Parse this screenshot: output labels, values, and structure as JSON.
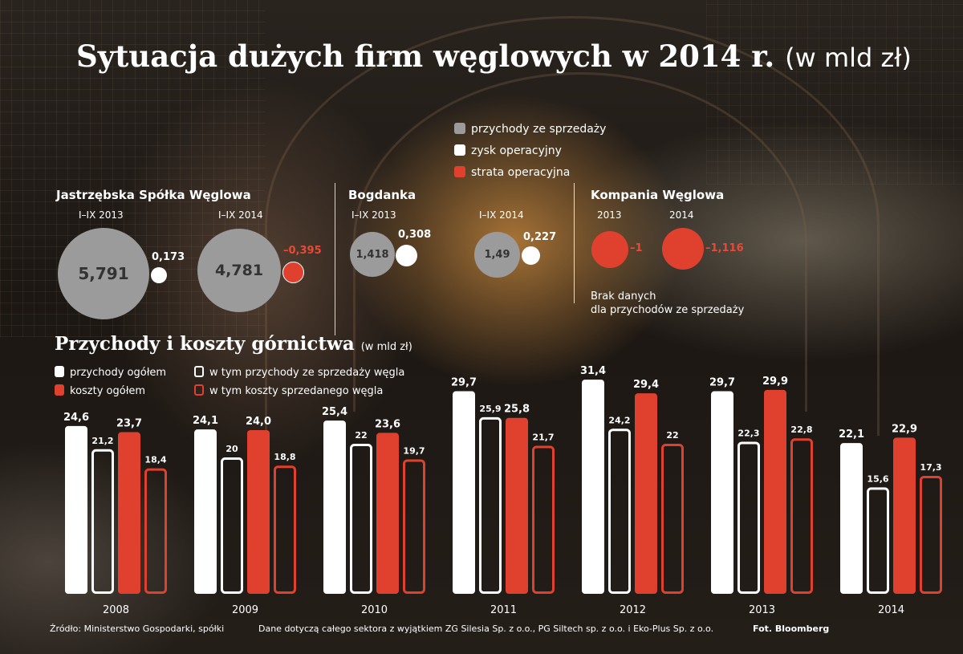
{
  "title": "Sytuacja dużych firm węglowych w 2014 r.",
  "title_unit": "(w mld zł)",
  "top_legend": [
    {
      "label": "przychody ze sprzedaży",
      "color": "#9b9b9b"
    },
    {
      "label": "zysk operacyjny",
      "color": "#ffffff"
    },
    {
      "label": "strata operacyjna",
      "color": "#e0412f"
    }
  ],
  "companies": {
    "jsw": {
      "name": "Jastrzębska Spółka Węglowa",
      "p1": {
        "period": "I–IX 2013",
        "revenue": "5,791",
        "result": "0,173"
      },
      "p2": {
        "period": "I–IX 2014",
        "revenue": "4,781",
        "result": "–0,395"
      }
    },
    "bogdanka": {
      "name": "Bogdanka",
      "p1": {
        "period": "I–IX 2013",
        "revenue": "1,418",
        "result": "0,308"
      },
      "p2": {
        "period": "I–IX 2014",
        "revenue": "1,49",
        "result": "0,227"
      }
    },
    "kw": {
      "name": "Kompania Węglowa",
      "p1": {
        "period": "2013",
        "result": "–1"
      },
      "p2": {
        "period": "2014",
        "result": "–1,116"
      },
      "note_line1": "Brak danych",
      "note_line2": "dla przychodów ze sprzedaży"
    }
  },
  "subtitle": "Przychody i koszty górnictwa",
  "subtitle_unit": "(w mld zł)",
  "chart_data": {
    "type": "bar",
    "categories": [
      "2008",
      "2009",
      "2010",
      "2011",
      "2012",
      "2013",
      "2014"
    ],
    "series": [
      {
        "name": "przychody ogółem",
        "color": "#ffffff",
        "style": "filled",
        "values": [
          24.6,
          24.1,
          25.4,
          29.7,
          31.4,
          29.7,
          22.1
        ],
        "labels": [
          "24,6",
          "24,1",
          "25,4",
          "29,7",
          "31,4",
          "29,7",
          "22,1"
        ]
      },
      {
        "name": "w tym przychody ze sprzedaży węgla",
        "color": "#ffffff",
        "style": "outline",
        "values": [
          21.2,
          20,
          22,
          25.9,
          24.2,
          22.3,
          15.6
        ],
        "labels": [
          "21,2",
          "20",
          "22",
          "25,9",
          "24,2",
          "22,3",
          "15,6"
        ]
      },
      {
        "name": "koszty ogółem",
        "color": "#e0412f",
        "style": "filled",
        "values": [
          23.7,
          24.0,
          23.6,
          25.8,
          29.4,
          29.9,
          22.9
        ],
        "labels": [
          "23,7",
          "24,0",
          "23,6",
          "25,8",
          "29,4",
          "29,9",
          "22,9"
        ]
      },
      {
        "name": "w tym koszty sprzedanego węgla",
        "color": "#e0412f",
        "style": "outline",
        "values": [
          18.4,
          18.8,
          19.7,
          21.7,
          22,
          22.8,
          17.3
        ],
        "labels": [
          "18,4",
          "18,8",
          "19,7",
          "21,7",
          "22",
          "22,8",
          "17,3"
        ]
      }
    ],
    "ylim": [
      0,
      32
    ],
    "grid": false,
    "legend": "top-left"
  },
  "footer": {
    "source": "Źródło: Ministerstwo Gospodarki, spółki",
    "note": "Dane dotyczą całego sektora z wyjątkiem ZG Silesia Sp. z o.o., PG Siltech sp. z o.o. i Eko-Plus Sp. z o.o.",
    "photo": "Fot. Bloomberg"
  }
}
